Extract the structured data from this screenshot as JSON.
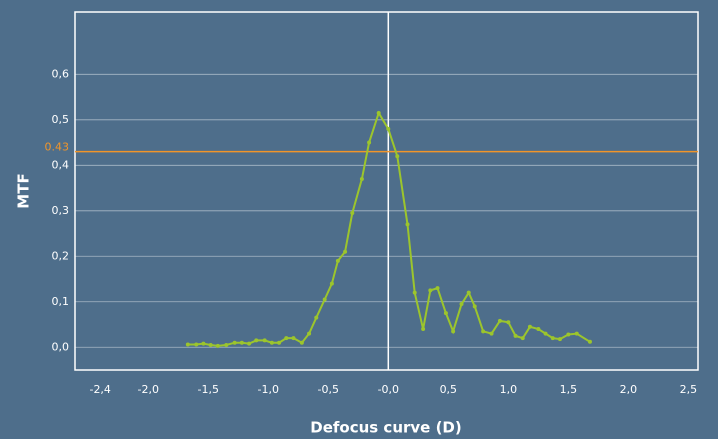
{
  "chart_data": {
    "type": "line",
    "xlabel": "Defocus curve (D)",
    "ylabel": "MTF",
    "x": [
      -1.67,
      -1.6,
      -1.54,
      -1.48,
      -1.42,
      -1.35,
      -1.28,
      -1.22,
      -1.16,
      -1.1,
      -1.03,
      -0.97,
      -0.91,
      -0.85,
      -0.79,
      -0.72,
      -0.66,
      -0.6,
      -0.53,
      -0.47,
      -0.42,
      -0.36,
      -0.3,
      -0.22,
      -0.16,
      -0.08,
      0.0,
      0.075,
      0.16,
      0.22,
      0.29,
      0.35,
      0.41,
      0.48,
      0.54,
      0.61,
      0.67,
      0.72,
      0.79,
      0.86,
      0.93,
      1.0,
      1.06,
      1.12,
      1.18,
      1.25,
      1.31,
      1.37,
      1.43,
      1.5,
      1.57,
      1.68
    ],
    "series": [
      {
        "name": "MTF",
        "color": "#9cc52c",
        "values": [
          0.006,
          0.006,
          0.008,
          0.005,
          0.003,
          0.005,
          0.01,
          0.01,
          0.008,
          0.015,
          0.015,
          0.01,
          0.01,
          0.02,
          0.02,
          0.01,
          0.03,
          0.065,
          0.105,
          0.14,
          0.19,
          0.21,
          0.295,
          0.37,
          0.45,
          0.515,
          0.48,
          0.42,
          0.27,
          0.12,
          0.04,
          0.125,
          0.13,
          0.075,
          0.035,
          0.095,
          0.12,
          0.09,
          0.035,
          0.03,
          0.058,
          0.055,
          0.025,
          0.02,
          0.045,
          0.04,
          0.03,
          0.02,
          0.018,
          0.028,
          0.03,
          0.012
        ]
      }
    ],
    "xlim": [
      -2.61,
      2.58
    ],
    "ylim": [
      -0.05,
      0.737
    ],
    "xticks": [
      {
        "value": -2.4,
        "label": "-2,4"
      },
      {
        "value": -2.0,
        "label": "-2,0"
      },
      {
        "value": -1.5,
        "label": "-1,5"
      },
      {
        "value": -1.0,
        "label": "-1,0"
      },
      {
        "value": -0.5,
        "label": "-0,5"
      },
      {
        "value": 0.0,
        "label": "-0,0"
      },
      {
        "value": 0.5,
        "label": "0,5"
      },
      {
        "value": 1.0,
        "label": "1,0"
      },
      {
        "value": 1.5,
        "label": "1,5"
      },
      {
        "value": 2.0,
        "label": "2,0"
      },
      {
        "value": 2.5,
        "label": "2,5"
      }
    ],
    "yticks": [
      {
        "value": 0.0,
        "label": "0,0"
      },
      {
        "value": 0.1,
        "label": "0,1"
      },
      {
        "value": 0.2,
        "label": "0,2"
      },
      {
        "value": 0.3,
        "label": "0,3"
      },
      {
        "value": 0.4,
        "label": "0,4"
      },
      {
        "value": 0.5,
        "label": "0,5"
      },
      {
        "value": 0.6,
        "label": "0,6"
      }
    ],
    "grid": true,
    "reference_line": {
      "value": 0.43,
      "color": "#f0952a"
    },
    "vline": 0
  }
}
